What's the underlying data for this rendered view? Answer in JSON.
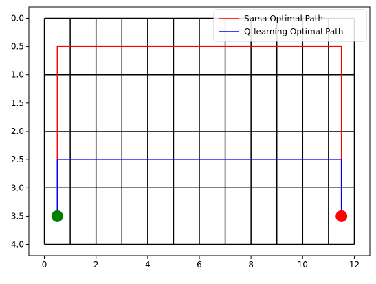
{
  "chart_data": {
    "type": "line",
    "title": "",
    "xlabel": "",
    "ylabel": "",
    "xlim": [
      -0.6,
      12.6
    ],
    "ylim": [
      4.2,
      -0.2
    ],
    "y_inverted": true,
    "xticks": [
      0,
      2,
      4,
      6,
      8,
      10,
      12
    ],
    "xtick_labels": [
      "0",
      "2",
      "4",
      "6",
      "8",
      "10",
      "12"
    ],
    "yticks": [
      0.0,
      0.5,
      1.0,
      1.5,
      2.0,
      2.5,
      3.0,
      3.5,
      4.0
    ],
    "ytick_labels": [
      "0.0",
      "0.5",
      "1.0",
      "1.5",
      "2.0",
      "2.5",
      "3.0",
      "3.5",
      "4.0"
    ],
    "grid": {
      "vertical_lines_x": [
        0,
        1,
        2,
        3,
        4,
        5,
        6,
        7,
        8,
        9,
        10,
        11,
        12
      ],
      "vertical_span": [
        0,
        4
      ],
      "horizontal_lines_y": [
        0,
        1,
        2,
        3,
        4
      ],
      "horizontal_span": [
        0,
        12
      ],
      "color": "#000000"
    },
    "legend_position": "top-right",
    "series": [
      {
        "name": "Sarsa Optimal Path",
        "color": "#ff0000",
        "x": [
          0.5,
          0.5,
          11.5,
          11.5
        ],
        "y": [
          3.5,
          0.5,
          0.5,
          3.5
        ]
      },
      {
        "name": "Q-learning Optimal Path",
        "color": "#0000ff",
        "x": [
          0.5,
          0.5,
          11.5,
          11.5
        ],
        "y": [
          3.5,
          2.5,
          2.5,
          3.5
        ]
      }
    ],
    "markers": [
      {
        "name": "start",
        "x": 0.5,
        "y": 3.5,
        "color": "#008000"
      },
      {
        "name": "goal",
        "x": 11.5,
        "y": 3.5,
        "color": "#ff0000"
      }
    ]
  }
}
